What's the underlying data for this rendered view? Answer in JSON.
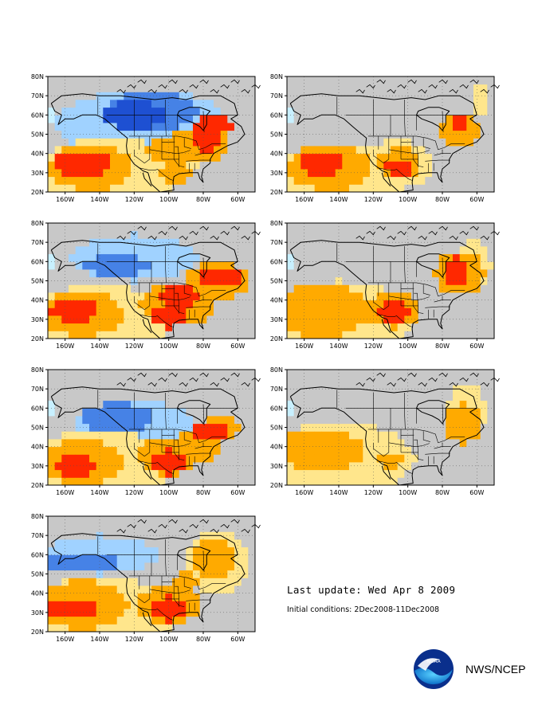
{
  "axes": {
    "lat_labels": [
      "80N",
      "70N",
      "60N",
      "50N",
      "40N",
      "30N",
      "20N"
    ],
    "lon_labels": [
      "160W",
      "140W",
      "120W",
      "100W",
      "80W",
      "60W"
    ]
  },
  "legend_colors": {
    "land": "#c8c8c8",
    "strong_cold": "#1e50d2",
    "cold": "#4682e6",
    "cool": "#a0d2ff",
    "very_cool": "#c8f0ff",
    "warm": "#ffe68c",
    "warmer": "#ffaa00",
    "hot": "#ff6400",
    "very_hot": "#ff2800"
  },
  "panels": [
    {
      "id": "panel-1"
    },
    {
      "id": "panel-2"
    },
    {
      "id": "panel-3"
    },
    {
      "id": "panel-4"
    },
    {
      "id": "panel-5"
    },
    {
      "id": "panel-6"
    },
    {
      "id": "panel-7"
    }
  ],
  "footer": {
    "last_update": "Last update: Wed Apr 8 2009",
    "initial_conditions": "Initial conditions: 2Dec2008-11Dec2008",
    "brand": "NWS/NCEP"
  }
}
